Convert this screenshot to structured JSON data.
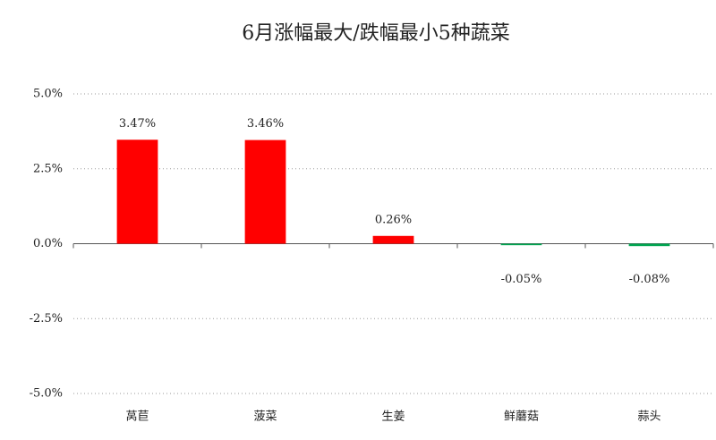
{
  "chart_data": {
    "type": "bar",
    "title": "6月涨幅最大/跌幅最小5种蔬菜",
    "categories": [
      "莴苣",
      "菠菜",
      "生姜",
      "鲜蘑菇",
      "蒜头"
    ],
    "values": [
      3.47,
      3.46,
      0.26,
      -0.05,
      -0.08
    ],
    "value_labels": [
      "3.47%",
      "3.46%",
      "0.26%",
      "-0.05%",
      "-0.08%"
    ],
    "colors": [
      "#ff0000",
      "#ff0000",
      "#ff0000",
      "#00a651",
      "#00a651"
    ],
    "ylim": [
      -5,
      5
    ],
    "yticks": [
      {
        "value": 5,
        "label": "5.0%"
      },
      {
        "value": 2.5,
        "label": "2.5%"
      },
      {
        "value": 0,
        "label": "0.0%"
      },
      {
        "value": -2.5,
        "label": "-2.5%"
      },
      {
        "value": -5,
        "label": "-5.0%"
      }
    ],
    "grid": true
  }
}
